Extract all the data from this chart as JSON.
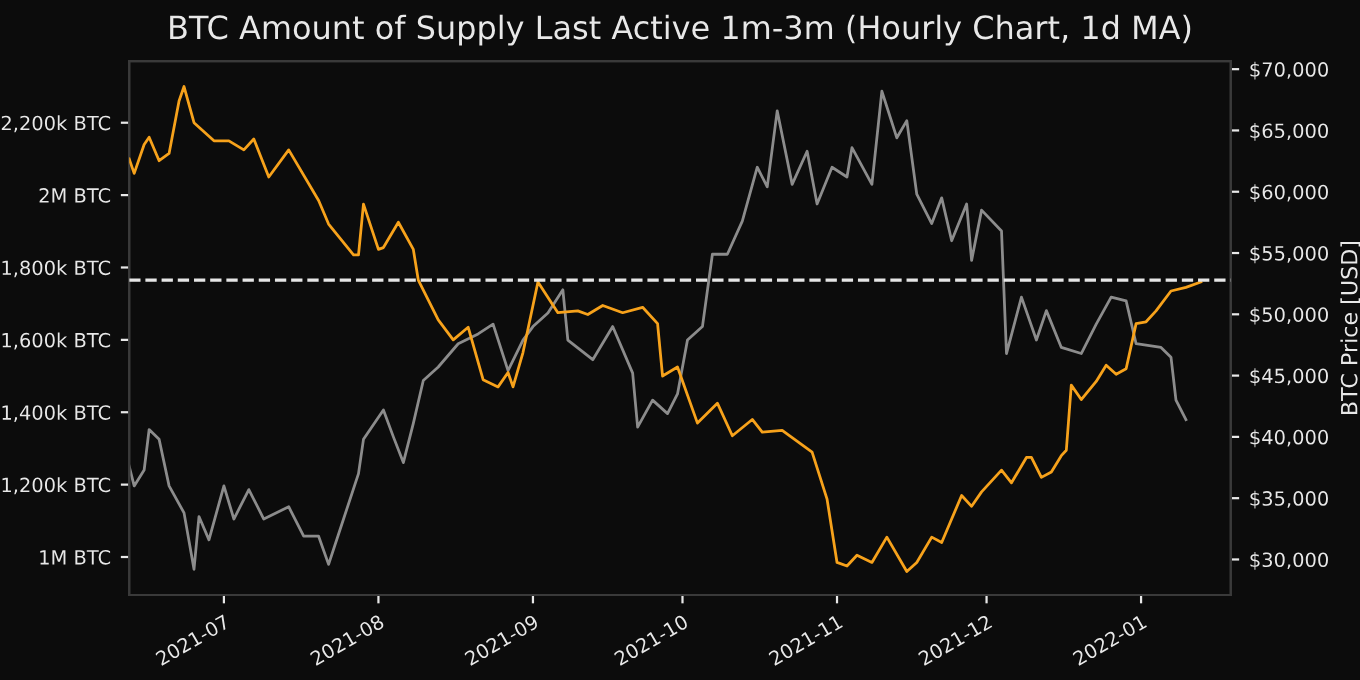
{
  "chart_data": {
    "type": "line",
    "title": "BTC Amount of Supply Last Active 1m-3m (Hourly Chart, 1d MA)",
    "y2label": "BTC Price [USD]",
    "series": [
      {
        "color": "#8c8c8c",
        "axis": "y2",
        "x": [
          "2021-06-12",
          "2021-06-13",
          "2021-06-15",
          "2021-06-16",
          "2021-06-18",
          "2021-06-20",
          "2021-06-23",
          "2021-06-25",
          "2021-06-26",
          "2021-06-28",
          "2021-07-01",
          "2021-07-03",
          "2021-07-06",
          "2021-07-09",
          "2021-07-14",
          "2021-07-17",
          "2021-07-20",
          "2021-07-22",
          "2021-07-25",
          "2021-07-28",
          "2021-07-29",
          "2021-08-02",
          "2021-08-04",
          "2021-08-06",
          "2021-08-08",
          "2021-08-10",
          "2021-08-13",
          "2021-08-17",
          "2021-08-21",
          "2021-08-24",
          "2021-08-27",
          "2021-08-30",
          "2021-09-01",
          "2021-09-04",
          "2021-09-07",
          "2021-09-08",
          "2021-09-13",
          "2021-09-17",
          "2021-09-21",
          "2021-09-22",
          "2021-09-25",
          "2021-09-28",
          "2021-09-30",
          "2021-10-02",
          "2021-10-05",
          "2021-10-07",
          "2021-10-10",
          "2021-10-13",
          "2021-10-16",
          "2021-10-18",
          "2021-10-20",
          "2021-10-23",
          "2021-10-26",
          "2021-10-28",
          "2021-10-31",
          "2021-11-03",
          "2021-11-04",
          "2021-11-08",
          "2021-11-10",
          "2021-11-13",
          "2021-11-15",
          "2021-11-17",
          "2021-11-20",
          "2021-11-22",
          "2021-11-24",
          "2021-11-27",
          "2021-11-28",
          "2021-11-30",
          "2021-12-04",
          "2021-12-05",
          "2021-12-08",
          "2021-12-11",
          "2021-12-13",
          "2021-12-16",
          "2021-12-20",
          "2021-12-23",
          "2021-12-26",
          "2021-12-29",
          "2021-12-31",
          "2022-01-05",
          "2022-01-07",
          "2022-01-08",
          "2022-01-10"
        ],
        "values": [
          37600,
          36000,
          37300,
          40600,
          39800,
          36000,
          33800,
          29200,
          33500,
          31600,
          36000,
          33300,
          35700,
          33300,
          34300,
          31900,
          31900,
          29600,
          33300,
          37000,
          39800,
          42200,
          40000,
          37900,
          41100,
          44600,
          45700,
          47600,
          48400,
          49200,
          45400,
          47900,
          49000,
          50100,
          52000,
          47900,
          46300,
          49000,
          45200,
          40800,
          43000,
          41900,
          43500,
          47900,
          49000,
          54900,
          54900,
          57600,
          62000,
          60400,
          66600,
          60600,
          63300,
          59000,
          62000,
          61200,
          63600,
          60600,
          68200,
          64400,
          65800,
          59800,
          57400,
          59500,
          56000,
          59000,
          54400,
          58500,
          56800,
          46800,
          51400,
          47900,
          50300,
          47300,
          46800,
          49200,
          51400,
          51100,
          47600,
          47300,
          46500,
          43000,
          41400
        ]
      },
      {
        "color": "#f7a21b",
        "x": [
          "2021-06-12",
          "2021-06-13",
          "2021-06-15",
          "2021-06-16",
          "2021-06-18",
          "2021-06-20",
          "2021-06-22",
          "2021-06-23",
          "2021-06-25",
          "2021-06-29",
          "2021-07-02",
          "2021-07-05",
          "2021-07-07",
          "2021-07-10",
          "2021-07-14",
          "2021-07-20",
          "2021-07-22",
          "2021-07-27",
          "2021-07-28",
          "2021-07-29",
          "2021-08-01",
          "2021-08-02",
          "2021-08-05",
          "2021-08-08",
          "2021-08-09",
          "2021-08-13",
          "2021-08-16",
          "2021-08-19",
          "2021-08-22",
          "2021-08-25",
          "2021-08-27",
          "2021-08-28",
          "2021-08-30",
          "2021-09-02",
          "2021-09-06",
          "2021-09-10",
          "2021-09-12",
          "2021-09-15",
          "2021-09-19",
          "2021-09-23",
          "2021-09-26",
          "2021-09-27",
          "2021-09-30",
          "2021-10-04",
          "2021-10-08",
          "2021-10-11",
          "2021-10-15",
          "2021-10-17",
          "2021-10-21",
          "2021-10-27",
          "2021-10-30",
          "2021-11-01",
          "2021-11-03",
          "2021-11-05",
          "2021-11-08",
          "2021-11-11",
          "2021-11-15",
          "2021-11-17",
          "2021-11-20",
          "2021-11-22",
          "2021-11-26",
          "2021-11-28",
          "2021-11-30",
          "2021-12-04",
          "2021-12-06",
          "2021-12-09",
          "2021-12-10",
          "2021-12-12",
          "2021-12-14",
          "2021-12-16",
          "2021-12-17",
          "2021-12-18",
          "2021-12-20",
          "2021-12-23",
          "2021-12-25",
          "2021-12-27",
          "2021-12-29",
          "2021-12-31",
          "2022-01-02",
          "2022-01-04",
          "2022-01-07",
          "2022-01-10",
          "2022-01-13"
        ],
        "values": [
          2100000,
          2060000,
          2140000,
          2160000,
          2095000,
          2115000,
          2260000,
          2300000,
          2200000,
          2150000,
          2150000,
          2125000,
          2155000,
          2050000,
          2125000,
          1985000,
          1920000,
          1835000,
          1835000,
          1975000,
          1850000,
          1855000,
          1925000,
          1850000,
          1765000,
          1655000,
          1600000,
          1635000,
          1490000,
          1470000,
          1510000,
          1470000,
          1565000,
          1760000,
          1675000,
          1680000,
          1670000,
          1695000,
          1675000,
          1690000,
          1645000,
          1500000,
          1525000,
          1370000,
          1425000,
          1335000,
          1380000,
          1345000,
          1350000,
          1290000,
          1160000,
          985000,
          975000,
          1005000,
          985000,
          1055000,
          960000,
          985000,
          1055000,
          1040000,
          1170000,
          1140000,
          1180000,
          1240000,
          1205000,
          1275000,
          1275000,
          1220000,
          1235000,
          1280000,
          1295000,
          1475000,
          1435000,
          1485000,
          1530000,
          1505000,
          1520000,
          1645000,
          1650000,
          1680000,
          1735000,
          1745000,
          1760000
        ]
      }
    ],
    "xlim": [
      "2021-06-12",
      "2022-01-19"
    ],
    "xticks": [
      {
        "value": "2021-07-01",
        "label": "2021-07"
      },
      {
        "value": "2021-08-01",
        "label": "2021-08"
      },
      {
        "value": "2021-09-01",
        "label": "2021-09"
      },
      {
        "value": "2021-10-01",
        "label": "2021-10"
      },
      {
        "value": "2021-11-01",
        "label": "2021-11"
      },
      {
        "value": "2021-12-01",
        "label": "2021-12"
      },
      {
        "value": "2022-01-01",
        "label": "2022-01"
      }
    ],
    "ylim": [
      895000,
      2370000
    ],
    "yticks": [
      {
        "value": 1000000,
        "label": "1M BTC"
      },
      {
        "value": 1200000,
        "label": "1,200k BTC"
      },
      {
        "value": 1400000,
        "label": "1,400k BTC"
      },
      {
        "value": 1600000,
        "label": "1,600k BTC"
      },
      {
        "value": 1800000,
        "label": "1,800k BTC"
      },
      {
        "value": 2000000,
        "label": "2M BTC"
      },
      {
        "value": 2200000,
        "label": "2,200k BTC"
      }
    ],
    "y2lim": [
      27100,
      70650
    ],
    "y2ticks": [
      {
        "value": 30000,
        "label": "$30,000"
      },
      {
        "value": 35000,
        "label": "$35,000"
      },
      {
        "value": 40000,
        "label": "$40,000"
      },
      {
        "value": 45000,
        "label": "$45,000"
      },
      {
        "value": 50000,
        "label": "$50,000"
      },
      {
        "value": 55000,
        "label": "$55,000"
      },
      {
        "value": 60000,
        "label": "$60,000"
      },
      {
        "value": 65000,
        "label": "$65,000"
      },
      {
        "value": 70000,
        "label": "$70,000"
      }
    ],
    "ref_lines": [
      {
        "axis": "y",
        "value": 1765000,
        "color": "#e6e6e6",
        "line_style": "dashed"
      }
    ],
    "grid": false,
    "marker": "none",
    "line_style": "solid"
  }
}
